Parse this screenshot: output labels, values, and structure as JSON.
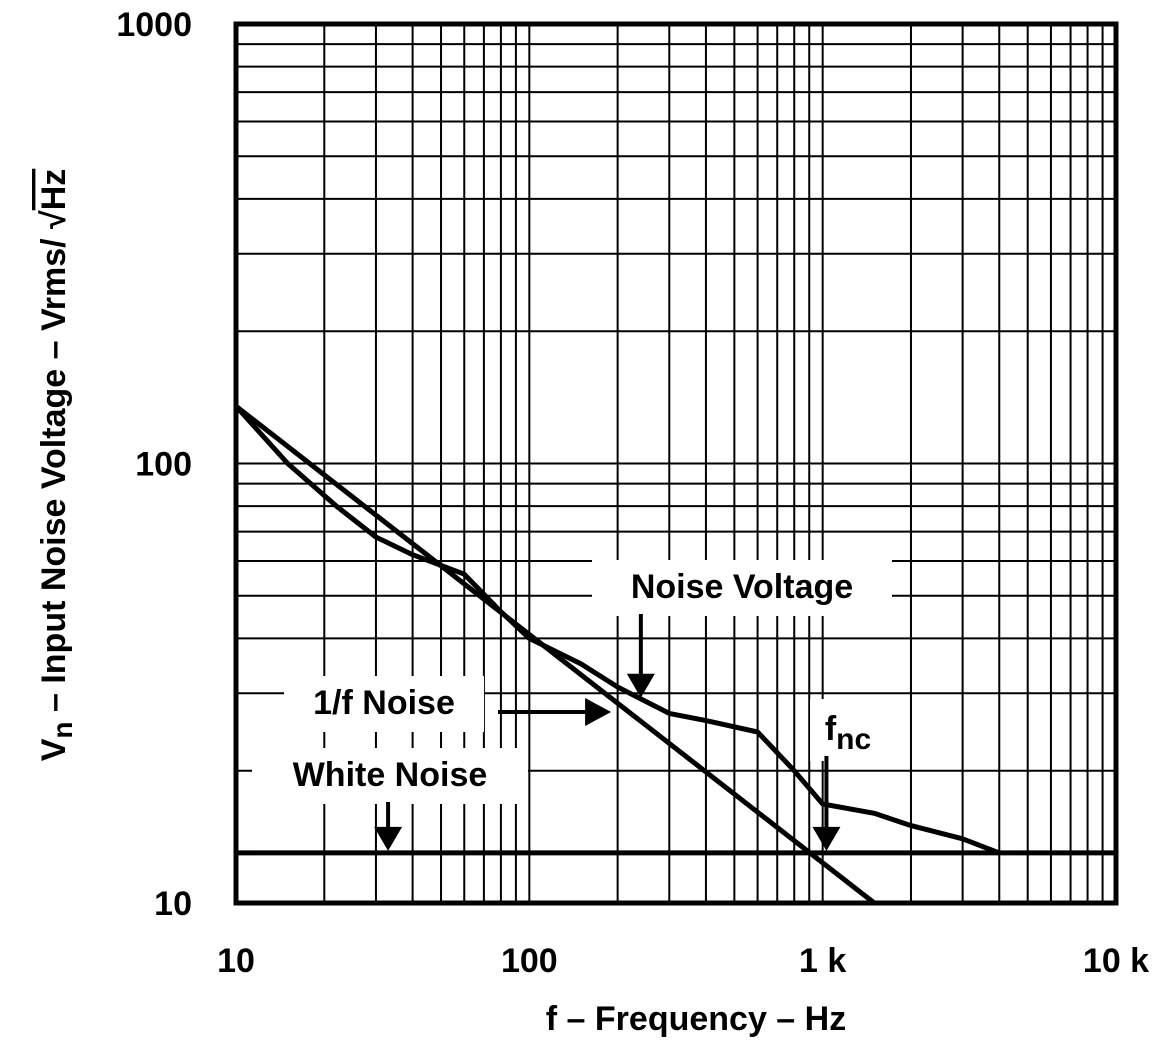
{
  "chart_data": {
    "type": "line",
    "xscale": "log",
    "yscale": "log",
    "xlim": [
      10,
      10000
    ],
    "ylim": [
      10,
      1000
    ],
    "grid": true,
    "x_ticks": [
      {
        "value": 10,
        "label": "10"
      },
      {
        "value": 100,
        "label": "100"
      },
      {
        "value": 1000,
        "label": "1 k"
      },
      {
        "value": 10000,
        "label": "10 k"
      }
    ],
    "y_ticks": [
      {
        "value": 10,
        "label": "10"
      },
      {
        "value": 100,
        "label": "100"
      },
      {
        "value": 1000,
        "label": "1000"
      }
    ],
    "xlabel": "f – Frequency – Hz",
    "ylabel": {
      "prefix": "V",
      "sub": "n",
      "middle": " – Input Noise Voltage – Vrms/ ",
      "radical": "√",
      "radicand": "Hz"
    },
    "series": [
      {
        "x": [
          10,
          1500
        ],
        "y": [
          135,
          10
        ]
      },
      {
        "x": [
          10,
          10000
        ],
        "y": [
          13,
          13
        ]
      },
      {
        "x": [
          10,
          15,
          22,
          30,
          40,
          60,
          80,
          100,
          150,
          200,
          300,
          400,
          600,
          800,
          1000,
          1500,
          2000,
          3000,
          4000
        ],
        "y": [
          135,
          100,
          80,
          68,
          62,
          56,
          46,
          40,
          35,
          31,
          27,
          26,
          24.5,
          20,
          16.8,
          16,
          15,
          14,
          13
        ]
      }
    ],
    "annotations": [
      {
        "id": "noise-voltage",
        "text": "Noise Voltage",
        "arrow": "down",
        "arrow_at": [
          240,
          29
        ]
      },
      {
        "id": "one-over-f",
        "text": "1/f Noise",
        "arrow": "right",
        "arrow_at": [
          190,
          27
        ]
      },
      {
        "id": "white-noise",
        "text": "White Noise",
        "arrow": "down",
        "arrow_at": [
          33,
          13
        ]
      },
      {
        "id": "fnc",
        "text": "f",
        "sub": "nc",
        "arrow": "down",
        "arrow_at": [
          1030,
          13
        ]
      }
    ]
  }
}
